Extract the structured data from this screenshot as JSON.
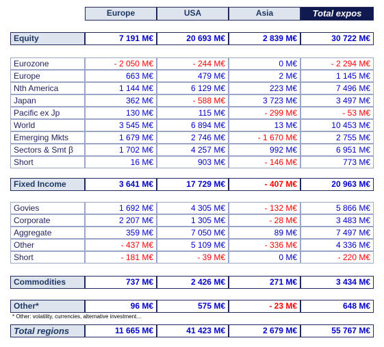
{
  "header": {
    "columns": [
      "Europe",
      "USA",
      "Asia",
      "Total expos"
    ]
  },
  "sections": [
    {
      "label": "Equity",
      "values": [
        "7 191 M€",
        "20 693 M€",
        "2 839 M€",
        "30 722 M€"
      ],
      "rows": [
        {
          "label": "Eurozone",
          "values": [
            "- 2 050 M€",
            "- 244 M€",
            "0 M€",
            "- 2 294 M€"
          ]
        },
        {
          "label": "Europe",
          "values": [
            "663 M€",
            "479 M€",
            "2 M€",
            "1 145 M€"
          ]
        },
        {
          "label": "Nth America",
          "values": [
            "1 144 M€",
            "6 129 M€",
            "223 M€",
            "7 496 M€"
          ]
        },
        {
          "label": "Japan",
          "values": [
            "362 M€",
            "- 588 M€",
            "3 723 M€",
            "3 497 M€"
          ]
        },
        {
          "label": "Pacific ex Jp",
          "values": [
            "130 M€",
            "115 M€",
            "- 299 M€",
            "- 53 M€"
          ]
        },
        {
          "label": "World",
          "values": [
            "3 545 M€",
            "6 894 M€",
            "13 M€",
            "10 453 M€"
          ]
        },
        {
          "label": "Emerging Mkts",
          "values": [
            "1 679 M€",
            "2 746 M€",
            "- 1 670 M€",
            "2 755 M€"
          ]
        },
        {
          "label": "Sectors & Smt β",
          "values": [
            "1 702 M€",
            "4 257 M€",
            "992 M€",
            "6 951 M€"
          ]
        },
        {
          "label": "Short",
          "values": [
            "16 M€",
            "903 M€",
            "- 146 M€",
            "773 M€"
          ]
        }
      ]
    },
    {
      "label": "Fixed Income",
      "values": [
        "3 641 M€",
        "17 729 M€",
        "- 407 M€",
        "20 963 M€"
      ],
      "rows": [
        {
          "label": "Govies",
          "values": [
            "1 692 M€",
            "4 305 M€",
            "- 132 M€",
            "5 866 M€"
          ]
        },
        {
          "label": "Corporate",
          "values": [
            "2 207 M€",
            "1 305 M€",
            "- 28 M€",
            "3 483 M€"
          ]
        },
        {
          "label": "Aggregate",
          "values": [
            "359 M€",
            "7 050 M€",
            "89 M€",
            "7 497 M€"
          ]
        },
        {
          "label": "Other",
          "values": [
            "- 437 M€",
            "5 109 M€",
            "- 336 M€",
            "4 336 M€"
          ]
        },
        {
          "label": "Short",
          "values": [
            "- 181 M€",
            "- 39 M€",
            "0 M€",
            "- 220 M€"
          ]
        }
      ]
    },
    {
      "label": "Commodities",
      "values": [
        "737 M€",
        "2 426 M€",
        "271 M€",
        "3 434 M€"
      ]
    },
    {
      "label": "Other*",
      "values": [
        "96 M€",
        "575 M€",
        "- 23 M€",
        "648 M€"
      ],
      "note": "* Other: volatility, currencies, alternative investment…"
    }
  ],
  "total": {
    "label": "Total regions",
    "values": [
      "11 665 M€",
      "41 423 M€",
      "2 679 M€",
      "55 767 M€"
    ]
  }
}
